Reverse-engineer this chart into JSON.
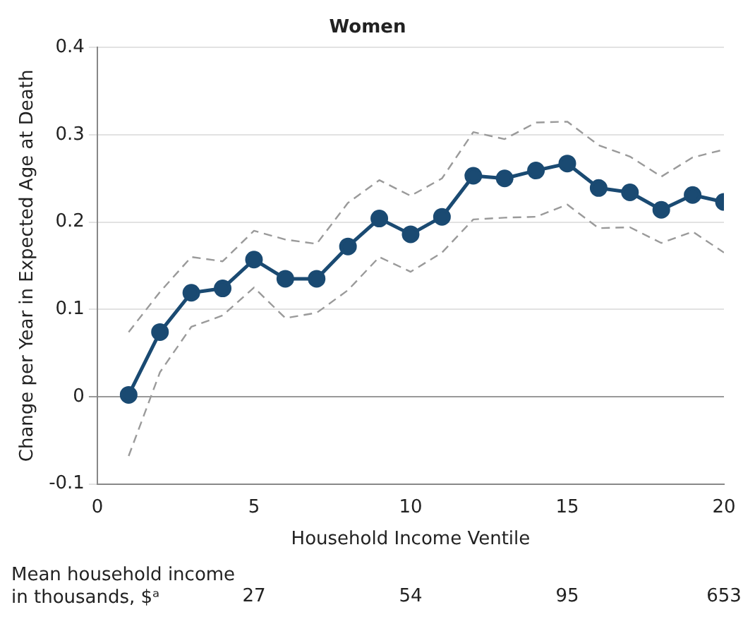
{
  "chart_data": {
    "type": "line",
    "title": "Women",
    "xlabel": "Household Income Ventile",
    "ylabel": "Change per Year in Expected Age at Death",
    "x": [
      1,
      2,
      3,
      4,
      5,
      6,
      7,
      8,
      9,
      10,
      11,
      12,
      13,
      14,
      15,
      16,
      17,
      18,
      19,
      20
    ],
    "series": [
      {
        "color": "#1a4a72",
        "values": [
          0.002,
          0.074,
          0.119,
          0.124,
          0.157,
          0.135,
          0.135,
          0.172,
          0.204,
          0.186,
          0.206,
          0.253,
          0.25,
          0.259,
          0.267,
          0.239,
          0.234,
          0.214,
          0.231,
          0.223
        ]
      },
      {
        "color": "#9a9a9a",
        "line_style": "dashed",
        "marker": "none",
        "values": [
          -0.068,
          0.028,
          0.08,
          0.093,
          0.125,
          0.09,
          0.096,
          0.122,
          0.16,
          0.143,
          0.165,
          0.203,
          0.205,
          0.206,
          0.22,
          0.193,
          0.194,
          0.176,
          0.189,
          0.165
        ]
      },
      {
        "color": "#9a9a9a",
        "line_style": "dashed",
        "marker": "none",
        "values": [
          0.074,
          0.12,
          0.16,
          0.155,
          0.19,
          0.18,
          0.175,
          0.222,
          0.248,
          0.23,
          0.25,
          0.303,
          0.295,
          0.314,
          0.315,
          0.288,
          0.275,
          0.252,
          0.274,
          0.283
        ]
      }
    ],
    "xlim": [
      0,
      20
    ],
    "xticks": [
      0,
      5,
      10,
      15,
      20
    ],
    "ylim": [
      -0.1,
      0.4
    ],
    "yticks": [
      -0.1,
      0,
      0.1,
      0.2,
      0.3,
      0.4
    ],
    "annotations": [
      "Mean household income in thousands, $ᵃ",
      "27",
      "54",
      "95",
      "653"
    ],
    "grid": "y",
    "legend": false,
    "marker": "circle",
    "line_style": "solid"
  }
}
